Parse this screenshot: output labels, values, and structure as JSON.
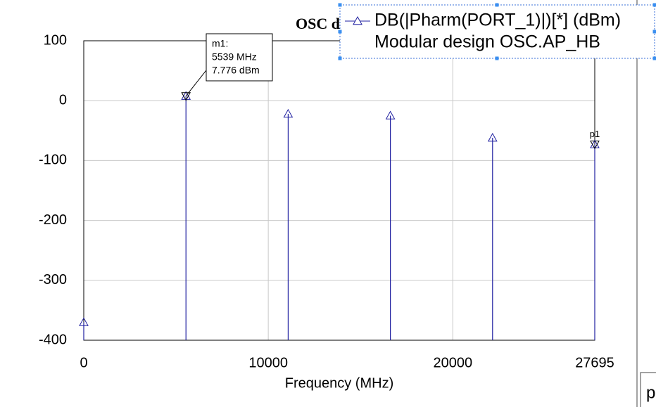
{
  "chart_data": {
    "type": "stem",
    "title": "OSC d",
    "x_label": "Frequency (MHz)",
    "x": [
      0,
      5539,
      11078,
      16617,
      22156,
      27695
    ],
    "series": [
      {
        "name": "DB(|Pharm(PORT_1)|)[*] (dBm)",
        "color": "#1f1fa0",
        "values": [
          -370,
          7.776,
          -22,
          -25,
          -62,
          -73
        ]
      }
    ],
    "legend_subtitle": "Modular design OSC.AP_HB",
    "xlim": [
      0,
      27695
    ],
    "xticks": [
      0,
      10000,
      20000,
      27695
    ],
    "ylim": [
      -400,
      100
    ],
    "yticks": [
      100,
      0,
      -100,
      -200,
      -300,
      -400
    ],
    "grid": true,
    "marker": {
      "label": "m1:",
      "x": 5539,
      "x_label": "5539 MHz",
      "y": 7.776,
      "y_label": "7.776 dBm"
    },
    "point_marker": {
      "label": "p1",
      "x": 27695,
      "y": -73
    },
    "side_tab": "p"
  }
}
